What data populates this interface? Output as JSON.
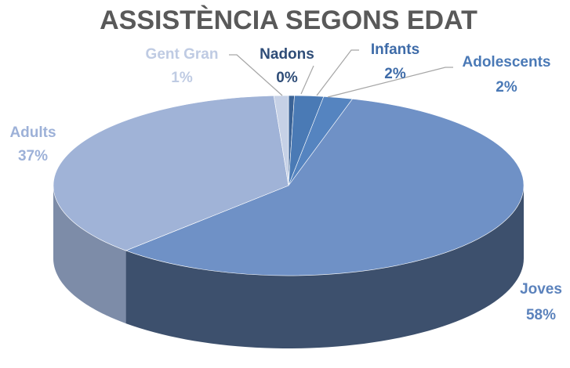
{
  "chart_data": {
    "type": "pie",
    "title": "ASSISTÈNCIA SEGONS EDAT",
    "categories": [
      "Nadons",
      "Infants",
      "Adolescents",
      "Joves",
      "Adults",
      "Gent Gran"
    ],
    "values": [
      0.4,
      2,
      2,
      58,
      37,
      1
    ],
    "value_labels": [
      "0%",
      "2%",
      "2%",
      "58%",
      "37%",
      "1%"
    ],
    "colors": [
      "#3b6396",
      "#4a7ab5",
      "#5584c0",
      "#6f91c6",
      "#a0b3d7",
      "#c6d1e6"
    ],
    "label_colors": [
      "#2f4d78",
      "#3e6ba8",
      "#4a79b6",
      "#5b82bc",
      "#9db1d8",
      "#bfcbe3"
    ]
  }
}
